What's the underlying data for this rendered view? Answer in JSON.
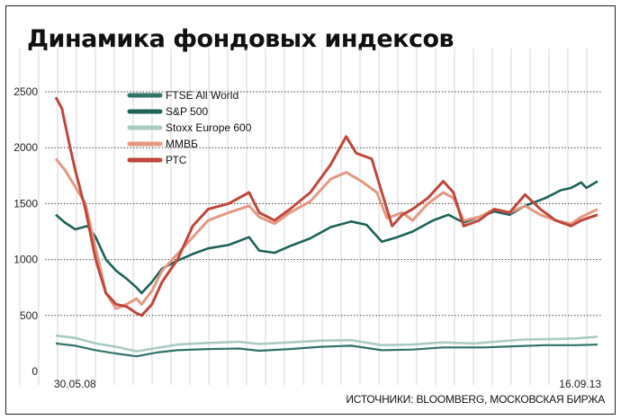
{
  "chart_data": {
    "type": "line",
    "title": "Динамика фондовых индексов",
    "xlabel": "",
    "ylabel": "",
    "x_start_label": "30.05.08",
    "x_end_label": "16.09.13",
    "ylim": [
      0,
      2500
    ],
    "yticks": [
      0,
      500,
      1000,
      1500,
      2000,
      2500
    ],
    "grid": true,
    "legend": "top-left",
    "source": "ИСТОЧНИКИ: BLOOMBERG, МОСКОВСКАЯ БИРЖА",
    "x_unit": "years",
    "series": [
      {
        "name": "FTSE All World",
        "color": "#2f7468",
        "width": 2.2,
        "points": [
          [
            2008.41,
            250
          ],
          [
            2008.6,
            230
          ],
          [
            2008.8,
            190
          ],
          [
            2009.0,
            160
          ],
          [
            2009.2,
            135
          ],
          [
            2009.4,
            170
          ],
          [
            2009.6,
            190
          ],
          [
            2009.9,
            200
          ],
          [
            2010.2,
            205
          ],
          [
            2010.4,
            185
          ],
          [
            2010.7,
            200
          ],
          [
            2011.0,
            220
          ],
          [
            2011.3,
            230
          ],
          [
            2011.6,
            190
          ],
          [
            2011.9,
            195
          ],
          [
            2012.2,
            215
          ],
          [
            2012.6,
            215
          ],
          [
            2012.9,
            225
          ],
          [
            2013.2,
            235
          ],
          [
            2013.5,
            235
          ],
          [
            2013.71,
            240
          ]
        ]
      },
      {
        "name": "S&P 500",
        "color": "#1e6358",
        "width": 2.6,
        "points": [
          [
            2008.41,
            1400
          ],
          [
            2008.5,
            1330
          ],
          [
            2008.6,
            1270
          ],
          [
            2008.72,
            1300
          ],
          [
            2008.8,
            1200
          ],
          [
            2008.9,
            1000
          ],
          [
            2009.0,
            900
          ],
          [
            2009.1,
            830
          ],
          [
            2009.2,
            750
          ],
          [
            2009.25,
            700
          ],
          [
            2009.35,
            800
          ],
          [
            2009.45,
            920
          ],
          [
            2009.6,
            990
          ],
          [
            2009.75,
            1050
          ],
          [
            2009.9,
            1100
          ],
          [
            2010.1,
            1130
          ],
          [
            2010.3,
            1200
          ],
          [
            2010.4,
            1080
          ],
          [
            2010.55,
            1060
          ],
          [
            2010.7,
            1120
          ],
          [
            2010.9,
            1190
          ],
          [
            2011.1,
            1290
          ],
          [
            2011.3,
            1340
          ],
          [
            2011.45,
            1310
          ],
          [
            2011.6,
            1160
          ],
          [
            2011.75,
            1200
          ],
          [
            2011.9,
            1250
          ],
          [
            2012.1,
            1350
          ],
          [
            2012.25,
            1400
          ],
          [
            2012.4,
            1330
          ],
          [
            2012.55,
            1380
          ],
          [
            2012.7,
            1430
          ],
          [
            2012.85,
            1400
          ],
          [
            2013.0,
            1480
          ],
          [
            2013.2,
            1550
          ],
          [
            2013.35,
            1620
          ],
          [
            2013.45,
            1640
          ],
          [
            2013.55,
            1690
          ],
          [
            2013.6,
            1640
          ],
          [
            2013.71,
            1700
          ]
        ]
      },
      {
        "name": "Stoxx Europe 600",
        "color": "#a9cbc4",
        "width": 2.6,
        "points": [
          [
            2008.41,
            320
          ],
          [
            2008.6,
            300
          ],
          [
            2008.8,
            250
          ],
          [
            2009.0,
            220
          ],
          [
            2009.2,
            180
          ],
          [
            2009.4,
            210
          ],
          [
            2009.6,
            240
          ],
          [
            2009.9,
            255
          ],
          [
            2010.2,
            265
          ],
          [
            2010.4,
            245
          ],
          [
            2010.7,
            260
          ],
          [
            2011.0,
            275
          ],
          [
            2011.3,
            280
          ],
          [
            2011.6,
            235
          ],
          [
            2011.9,
            240
          ],
          [
            2012.2,
            260
          ],
          [
            2012.5,
            250
          ],
          [
            2012.7,
            265
          ],
          [
            2013.0,
            285
          ],
          [
            2013.3,
            290
          ],
          [
            2013.5,
            295
          ],
          [
            2013.71,
            310
          ]
        ]
      },
      {
        "name": "ММВБ",
        "color": "#e59880",
        "width": 3.0,
        "points": [
          [
            2008.41,
            1900
          ],
          [
            2008.5,
            1800
          ],
          [
            2008.6,
            1650
          ],
          [
            2008.7,
            1500
          ],
          [
            2008.8,
            1100
          ],
          [
            2008.9,
            700
          ],
          [
            2009.0,
            560
          ],
          [
            2009.1,
            600
          ],
          [
            2009.2,
            650
          ],
          [
            2009.25,
            600
          ],
          [
            2009.35,
            720
          ],
          [
            2009.45,
            900
          ],
          [
            2009.6,
            1050
          ],
          [
            2009.75,
            1200
          ],
          [
            2009.9,
            1350
          ],
          [
            2010.1,
            1420
          ],
          [
            2010.3,
            1480
          ],
          [
            2010.4,
            1380
          ],
          [
            2010.55,
            1320
          ],
          [
            2010.7,
            1420
          ],
          [
            2010.9,
            1520
          ],
          [
            2011.1,
            1720
          ],
          [
            2011.25,
            1780
          ],
          [
            2011.4,
            1700
          ],
          [
            2011.55,
            1600
          ],
          [
            2011.65,
            1370
          ],
          [
            2011.8,
            1420
          ],
          [
            2011.9,
            1350
          ],
          [
            2012.05,
            1500
          ],
          [
            2012.2,
            1600
          ],
          [
            2012.3,
            1550
          ],
          [
            2012.4,
            1350
          ],
          [
            2012.55,
            1380
          ],
          [
            2012.7,
            1450
          ],
          [
            2012.85,
            1420
          ],
          [
            2013.0,
            1480
          ],
          [
            2013.15,
            1400
          ],
          [
            2013.3,
            1350
          ],
          [
            2013.45,
            1320
          ],
          [
            2013.55,
            1380
          ],
          [
            2013.71,
            1450
          ]
        ]
      },
      {
        "name": "РТС",
        "color": "#c1463a",
        "width": 3.0,
        "points": [
          [
            2008.41,
            2450
          ],
          [
            2008.47,
            2350
          ],
          [
            2008.55,
            2000
          ],
          [
            2008.6,
            1800
          ],
          [
            2008.7,
            1450
          ],
          [
            2008.8,
            1000
          ],
          [
            2008.9,
            700
          ],
          [
            2009.0,
            600
          ],
          [
            2009.1,
            580
          ],
          [
            2009.2,
            520
          ],
          [
            2009.25,
            500
          ],
          [
            2009.35,
            600
          ],
          [
            2009.45,
            800
          ],
          [
            2009.6,
            1000
          ],
          [
            2009.75,
            1300
          ],
          [
            2009.9,
            1450
          ],
          [
            2010.1,
            1500
          ],
          [
            2010.3,
            1600
          ],
          [
            2010.4,
            1420
          ],
          [
            2010.55,
            1350
          ],
          [
            2010.7,
            1450
          ],
          [
            2010.9,
            1600
          ],
          [
            2011.1,
            1850
          ],
          [
            2011.25,
            2100
          ],
          [
            2011.35,
            1950
          ],
          [
            2011.5,
            1900
          ],
          [
            2011.6,
            1600
          ],
          [
            2011.7,
            1300
          ],
          [
            2011.8,
            1400
          ],
          [
            2011.9,
            1450
          ],
          [
            2012.05,
            1550
          ],
          [
            2012.2,
            1700
          ],
          [
            2012.3,
            1600
          ],
          [
            2012.4,
            1300
          ],
          [
            2012.55,
            1350
          ],
          [
            2012.7,
            1450
          ],
          [
            2012.85,
            1420
          ],
          [
            2013.0,
            1580
          ],
          [
            2013.15,
            1450
          ],
          [
            2013.3,
            1350
          ],
          [
            2013.45,
            1300
          ],
          [
            2013.55,
            1350
          ],
          [
            2013.71,
            1400
          ]
        ]
      }
    ]
  }
}
